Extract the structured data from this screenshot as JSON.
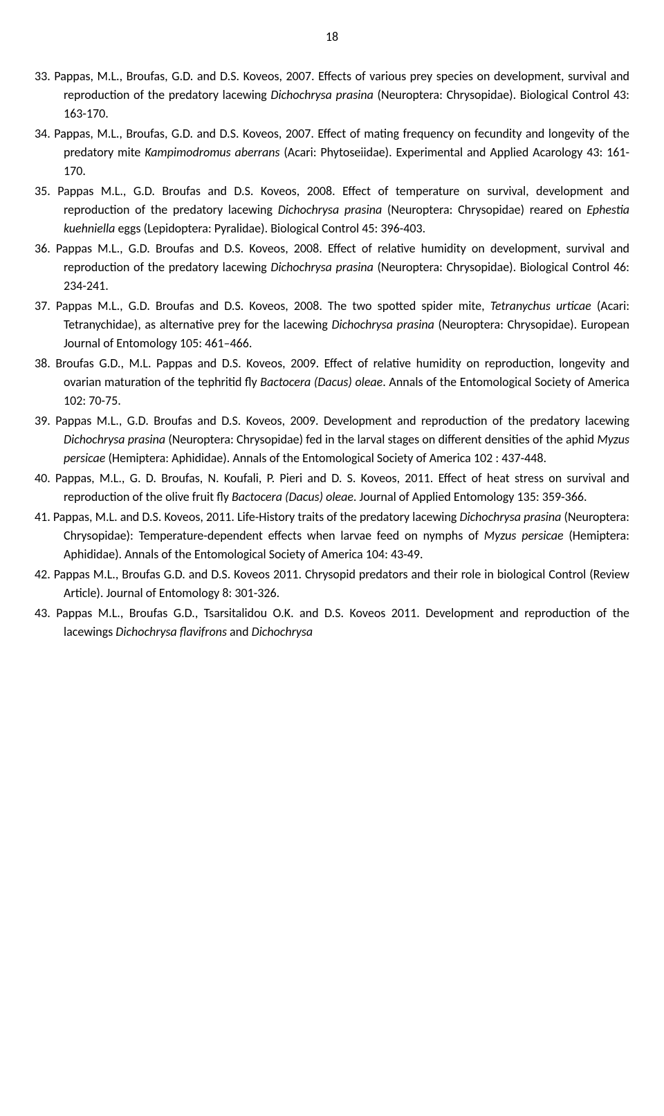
{
  "page_number": "18",
  "references": [
    {
      "num": "33.",
      "segments": [
        {
          "t": " Pappas, M.L., Broufas, G.D. and D.S. Koveos, 2007. Effects of various prey species on development, survival and reproduction of the predatory lacewing ",
          "i": false
        },
        {
          "t": "Dichochrysa prasina",
          "i": true
        },
        {
          "t": " (Neuroptera: Chrysopidae). Biological Control 43: 163-170.",
          "i": false
        }
      ]
    },
    {
      "num": "34.",
      "segments": [
        {
          "t": " Pappas, M.L., Broufas, G.D. and D.S. Koveos, 2007. Effect of mating frequency on fecundity and longevity of the predatory mite ",
          "i": false
        },
        {
          "t": "Kampimodromus aberrans",
          "i": true
        },
        {
          "t": " (Acari: Phytoseiidae). Experimental and Applied Acarology 43: 161-170.",
          "i": false
        }
      ]
    },
    {
      "num": "35.",
      "segments": [
        {
          "t": " Pappas M.L., G.D. Broufas and D.S. Koveos, 2008. Effect of temperature on survival, development and reproduction of the predatory lacewing ",
          "i": false
        },
        {
          "t": "Dichochrysa prasina",
          "i": true
        },
        {
          "t": " (Neuroptera: Chrysopidae) reared on ",
          "i": false
        },
        {
          "t": "Ephestia kuehniella",
          "i": true
        },
        {
          "t": " eggs (Lepidoptera: Pyralidae). Biological Control 45: 396-403.",
          "i": false
        }
      ]
    },
    {
      "num": "36.",
      "segments": [
        {
          "t": " Pappas M.L., G.D. Broufas and D.S. Koveos, 2008. Effect of relative humidity on development, survival and reproduction of the predatory lacewing ",
          "i": false
        },
        {
          "t": "Dichochrysa prasina",
          "i": true
        },
        {
          "t": " (Neuroptera: Chrysopidae). Biological Control 46: 234-241.",
          "i": false
        }
      ]
    },
    {
      "num": "37.",
      "segments": [
        {
          "t": " Pappas M.L., G.D. Broufas and D.S. Koveos, 2008. The two spotted spider mite, ",
          "i": false
        },
        {
          "t": "Tetranychus urticae",
          "i": true
        },
        {
          "t": " (Acari: Tetranychidae), as alternative prey for the lacewing ",
          "i": false
        },
        {
          "t": "Dichochrysa prasina",
          "i": true
        },
        {
          "t": " (Neuroptera: Chrysopidae). European Journal of Entomology 105: 461–466.",
          "i": false
        }
      ]
    },
    {
      "num": "38.",
      "segments": [
        {
          "t": " Broufas G.D., M.L. Pappas and D.S. Koveos, 2009. Effect of relative humidity on reproduction, longevity and ovarian maturation of the tephritid fly ",
          "i": false
        },
        {
          "t": "Bactocera (Dacus) oleae",
          "i": true
        },
        {
          "t": ". Annals of the Entomological Society of America 102: 70-75.",
          "i": false
        }
      ]
    },
    {
      "num": "39.",
      "segments": [
        {
          "t": " Pappas M.L., G.D. Broufas and D.S. Koveos, 2009. Development and reproduction of the predatory lacewing ",
          "i": false
        },
        {
          "t": "Dichochrysa prasina",
          "i": true
        },
        {
          "t": " (Neuroptera: Chrysopidae) fed in the larval stages on different densities of the aphid ",
          "i": false
        },
        {
          "t": "Myzus persicae",
          "i": true
        },
        {
          "t": " (Hemiptera: Aphididae). Annals of the Entomological Society of America 102 : 437-448.",
          "i": false
        }
      ]
    },
    {
      "num": "40.",
      "segments": [
        {
          "t": "  Pappas, M.L., G. D. Broufas, N. Koufali, P. Pieri and D. S. Koveos, 2011. Effect of heat stress on survival and reproduction of the olive fruit fly ",
          "i": false
        },
        {
          "t": "Bactocera (Dacus) oleae",
          "i": true
        },
        {
          "t": ". Journal of Applied Entomology 135: 359-366.",
          "i": false
        }
      ]
    },
    {
      "num": "41.",
      "segments": [
        {
          "t": " Pappas, M.L. and D.S. Koveos, 2011. Life-History traits of the predatory lacewing ",
          "i": false
        },
        {
          "t": "Dichochrysa prasina",
          "i": true
        },
        {
          "t": " (Neuroptera: Chrysopidae): Temperature-dependent effects when larvae feed on nymphs of ",
          "i": false
        },
        {
          "t": "Myzus persicae",
          "i": true
        },
        {
          "t": " (Hemiptera: Aphididae). Annals of the Entomological Society of America 104: 43-49.",
          "i": false
        }
      ]
    },
    {
      "num": "42.",
      "segments": [
        {
          "t": " Pappas M.L., Broufas G.D. and D.S. Koveos 2011. Chrysopid predators and their role in biological Control (Review Article). Journal of Entomology 8: 301-326.",
          "i": false
        }
      ]
    },
    {
      "num": "43.",
      "segments": [
        {
          "t": " Pappas M.L., Broufas G.D., Tsarsitalidou O.K. and D.S. Koveos 2011. Development and reproduction of the lacewings ",
          "i": false
        },
        {
          "t": "Dichochrysa flavifrons",
          "i": true
        },
        {
          "t": " and ",
          "i": false
        },
        {
          "t": "Dichochrysa",
          "i": true
        }
      ]
    }
  ]
}
